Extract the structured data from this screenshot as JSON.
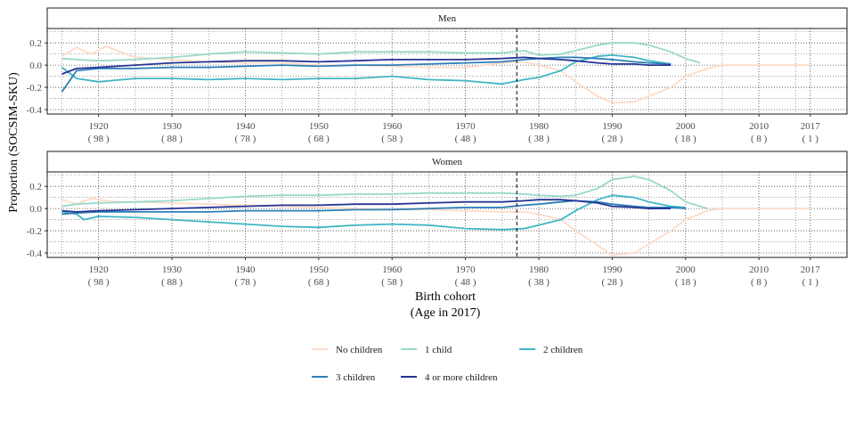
{
  "chart_data": {
    "type": "line",
    "ylabel": "Proportion (SOCSIM-SKU)",
    "xlabel_line1": "Birth cohort",
    "xlabel_line2": "(Age in 2017)",
    "xlim": [
      1913,
      2022
    ],
    "ylim": [
      -0.44,
      0.33
    ],
    "vline_x": 1977,
    "grid": "dotted",
    "legend_position": "bottom",
    "yticks": [
      {
        "value": 0.2,
        "label": "0.2"
      },
      {
        "value": 0.0,
        "label": "0.0"
      },
      {
        "value": -0.2,
        "label": "-0.2"
      },
      {
        "value": -0.4,
        "label": "-0.4"
      }
    ],
    "xticks": [
      {
        "value": 1920,
        "year": "1920",
        "age": "( 98 )"
      },
      {
        "value": 1930,
        "year": "1930",
        "age": "( 88 )"
      },
      {
        "value": 1940,
        "year": "1940",
        "age": "( 78 )"
      },
      {
        "value": 1950,
        "year": "1950",
        "age": "( 68 )"
      },
      {
        "value": 1960,
        "year": "1960",
        "age": "( 58 )"
      },
      {
        "value": 1970,
        "year": "1970",
        "age": "( 48 )"
      },
      {
        "value": 1980,
        "year": "1980",
        "age": "( 38 )"
      },
      {
        "value": 1990,
        "year": "1990",
        "age": "( 28 )"
      },
      {
        "value": 2000,
        "year": "2000",
        "age": "( 18 )"
      },
      {
        "value": 2010,
        "year": "2010",
        "age": "( 8 )"
      },
      {
        "value": 2017,
        "year": "2017",
        "age": "( 1 )"
      }
    ],
    "legend": [
      {
        "name": "No children",
        "color": "#fddbc7"
      },
      {
        "name": "1 child",
        "color": "#99d8c9"
      },
      {
        "name": "2 children",
        "color": "#41b6c4"
      },
      {
        "name": "3 children",
        "color": "#2c7fb8"
      },
      {
        "name": "4 or more children",
        "color": "#253494"
      }
    ],
    "panels": [
      {
        "strip": "Men",
        "series": [
          {
            "name": "No children",
            "color": "#fddbc7",
            "x": [
              1915,
              1917,
              1919,
              1921,
              1923,
              1925,
              1930,
              1935,
              1940,
              1945,
              1950,
              1955,
              1960,
              1965,
              1970,
              1975,
              1978,
              1980,
              1983,
              1985,
              1988,
              1990,
              1993,
              1995,
              1998,
              2000,
              2003,
              2005,
              2010,
              2017
            ],
            "y": [
              0.08,
              0.16,
              0.1,
              0.17,
              0.12,
              0.07,
              0.05,
              0.03,
              0.02,
              0.02,
              0.0,
              0.0,
              -0.01,
              -0.02,
              -0.02,
              0.02,
              0.03,
              0.0,
              -0.05,
              -0.15,
              -0.28,
              -0.34,
              -0.33,
              -0.28,
              -0.2,
              -0.1,
              -0.03,
              0.0,
              0.0,
              0.0
            ]
          },
          {
            "name": "1 child",
            "color": "#99d8c9",
            "x": [
              1915,
              1917,
              1920,
              1925,
              1930,
              1935,
              1940,
              1945,
              1950,
              1955,
              1960,
              1965,
              1970,
              1975,
              1978,
              1980,
              1983,
              1985,
              1988,
              1990,
              1993,
              1995,
              1998,
              2000,
              2002
            ],
            "y": [
              0.06,
              0.05,
              0.04,
              0.05,
              0.07,
              0.1,
              0.12,
              0.11,
              0.1,
              0.12,
              0.12,
              0.12,
              0.11,
              0.11,
              0.13,
              0.09,
              0.1,
              0.13,
              0.18,
              0.2,
              0.2,
              0.18,
              0.12,
              0.06,
              0.02
            ]
          },
          {
            "name": "2 children",
            "color": "#41b6c4",
            "x": [
              1915,
              1917,
              1920,
              1925,
              1930,
              1935,
              1940,
              1945,
              1950,
              1955,
              1960,
              1965,
              1970,
              1975,
              1978,
              1980,
              1983,
              1985,
              1988,
              1990,
              1993,
              1995,
              1998
            ],
            "y": [
              -0.02,
              -0.12,
              -0.15,
              -0.12,
              -0.12,
              -0.13,
              -0.12,
              -0.13,
              -0.12,
              -0.12,
              -0.1,
              -0.13,
              -0.14,
              -0.17,
              -0.13,
              -0.11,
              -0.05,
              0.03,
              0.08,
              0.09,
              0.07,
              0.04,
              0.01
            ]
          },
          {
            "name": "3 children",
            "color": "#2c7fb8",
            "x": [
              1915,
              1917,
              1920,
              1925,
              1930,
              1935,
              1940,
              1945,
              1950,
              1955,
              1960,
              1965,
              1970,
              1975,
              1978,
              1980,
              1983,
              1985,
              1988,
              1990,
              1993,
              1995,
              1998
            ],
            "y": [
              -0.24,
              -0.05,
              -0.03,
              -0.03,
              -0.02,
              -0.02,
              -0.01,
              0.0,
              -0.01,
              0.0,
              0.0,
              0.01,
              0.02,
              0.03,
              0.05,
              0.06,
              0.07,
              0.07,
              0.06,
              0.05,
              0.03,
              0.02,
              0.01
            ]
          },
          {
            "name": "4 or more children",
            "color": "#253494",
            "x": [
              1915,
              1917,
              1920,
              1925,
              1930,
              1935,
              1940,
              1945,
              1950,
              1955,
              1960,
              1965,
              1970,
              1975,
              1978,
              1980,
              1983,
              1985,
              1988,
              1990,
              1993,
              1995,
              1998
            ],
            "y": [
              -0.08,
              -0.03,
              -0.02,
              0.0,
              0.02,
              0.03,
              0.04,
              0.04,
              0.03,
              0.04,
              0.05,
              0.05,
              0.05,
              0.06,
              0.07,
              0.06,
              0.05,
              0.04,
              0.02,
              0.01,
              0.01,
              0.0,
              0.0
            ]
          }
        ]
      },
      {
        "strip": "Women",
        "series": [
          {
            "name": "No children",
            "color": "#fddbc7",
            "x": [
              1915,
              1917,
              1919,
              1921,
              1923,
              1925,
              1930,
              1935,
              1940,
              1945,
              1950,
              1955,
              1960,
              1965,
              1970,
              1975,
              1978,
              1980,
              1983,
              1985,
              1988,
              1990,
              1993,
              1995,
              1998,
              2000,
              2003,
              2005,
              2010,
              2017
            ],
            "y": [
              0.08,
              0.04,
              0.09,
              0.07,
              0.06,
              0.06,
              0.05,
              0.04,
              0.03,
              0.02,
              0.01,
              0.0,
              -0.01,
              -0.01,
              -0.02,
              -0.03,
              -0.03,
              -0.05,
              -0.1,
              -0.2,
              -0.33,
              -0.42,
              -0.4,
              -0.32,
              -0.2,
              -0.1,
              -0.02,
              0.0,
              0.0,
              0.0
            ]
          },
          {
            "name": "1 child",
            "color": "#99d8c9",
            "x": [
              1915,
              1917,
              1920,
              1925,
              1930,
              1935,
              1940,
              1945,
              1950,
              1955,
              1960,
              1965,
              1970,
              1975,
              1978,
              1980,
              1983,
              1985,
              1988,
              1990,
              1993,
              1995,
              1998,
              2000,
              2003
            ],
            "y": [
              0.02,
              0.04,
              0.05,
              0.06,
              0.07,
              0.09,
              0.11,
              0.12,
              0.12,
              0.13,
              0.13,
              0.14,
              0.14,
              0.14,
              0.13,
              0.12,
              0.11,
              0.12,
              0.18,
              0.26,
              0.29,
              0.26,
              0.16,
              0.06,
              0.0
            ]
          },
          {
            "name": "2 children",
            "color": "#41b6c4",
            "x": [
              1915,
              1917,
              1918,
              1920,
              1925,
              1930,
              1935,
              1940,
              1945,
              1950,
              1955,
              1960,
              1965,
              1970,
              1975,
              1978,
              1980,
              1983,
              1985,
              1988,
              1990,
              1993,
              1995,
              1998,
              2000
            ],
            "y": [
              -0.03,
              -0.05,
              -0.1,
              -0.07,
              -0.08,
              -0.1,
              -0.12,
              -0.14,
              -0.16,
              -0.17,
              -0.15,
              -0.14,
              -0.15,
              -0.18,
              -0.19,
              -0.18,
              -0.15,
              -0.1,
              -0.02,
              0.08,
              0.12,
              0.1,
              0.06,
              0.02,
              0.01
            ]
          },
          {
            "name": "3 children",
            "color": "#2c7fb8",
            "x": [
              1915,
              1917,
              1920,
              1925,
              1930,
              1935,
              1940,
              1945,
              1950,
              1955,
              1960,
              1965,
              1970,
              1975,
              1978,
              1980,
              1983,
              1985,
              1988,
              1990,
              1993,
              1995,
              1998,
              2000
            ],
            "y": [
              -0.05,
              -0.04,
              -0.03,
              -0.03,
              -0.03,
              -0.03,
              -0.02,
              -0.02,
              -0.02,
              -0.01,
              -0.01,
              0.0,
              0.01,
              0.01,
              0.03,
              0.04,
              0.06,
              0.07,
              0.06,
              0.04,
              0.02,
              0.01,
              0.01,
              0.0
            ]
          },
          {
            "name": "4 or more children",
            "color": "#253494",
            "x": [
              1915,
              1917,
              1920,
              1925,
              1930,
              1935,
              1940,
              1945,
              1950,
              1955,
              1960,
              1965,
              1970,
              1975,
              1978,
              1980,
              1983,
              1985,
              1988,
              1990,
              1993,
              1995,
              1998
            ],
            "y": [
              -0.02,
              -0.03,
              -0.02,
              -0.01,
              0.0,
              0.01,
              0.02,
              0.03,
              0.03,
              0.04,
              0.04,
              0.05,
              0.06,
              0.06,
              0.07,
              0.08,
              0.08,
              0.07,
              0.05,
              0.02,
              0.01,
              0.0,
              0.0
            ]
          }
        ]
      }
    ]
  }
}
